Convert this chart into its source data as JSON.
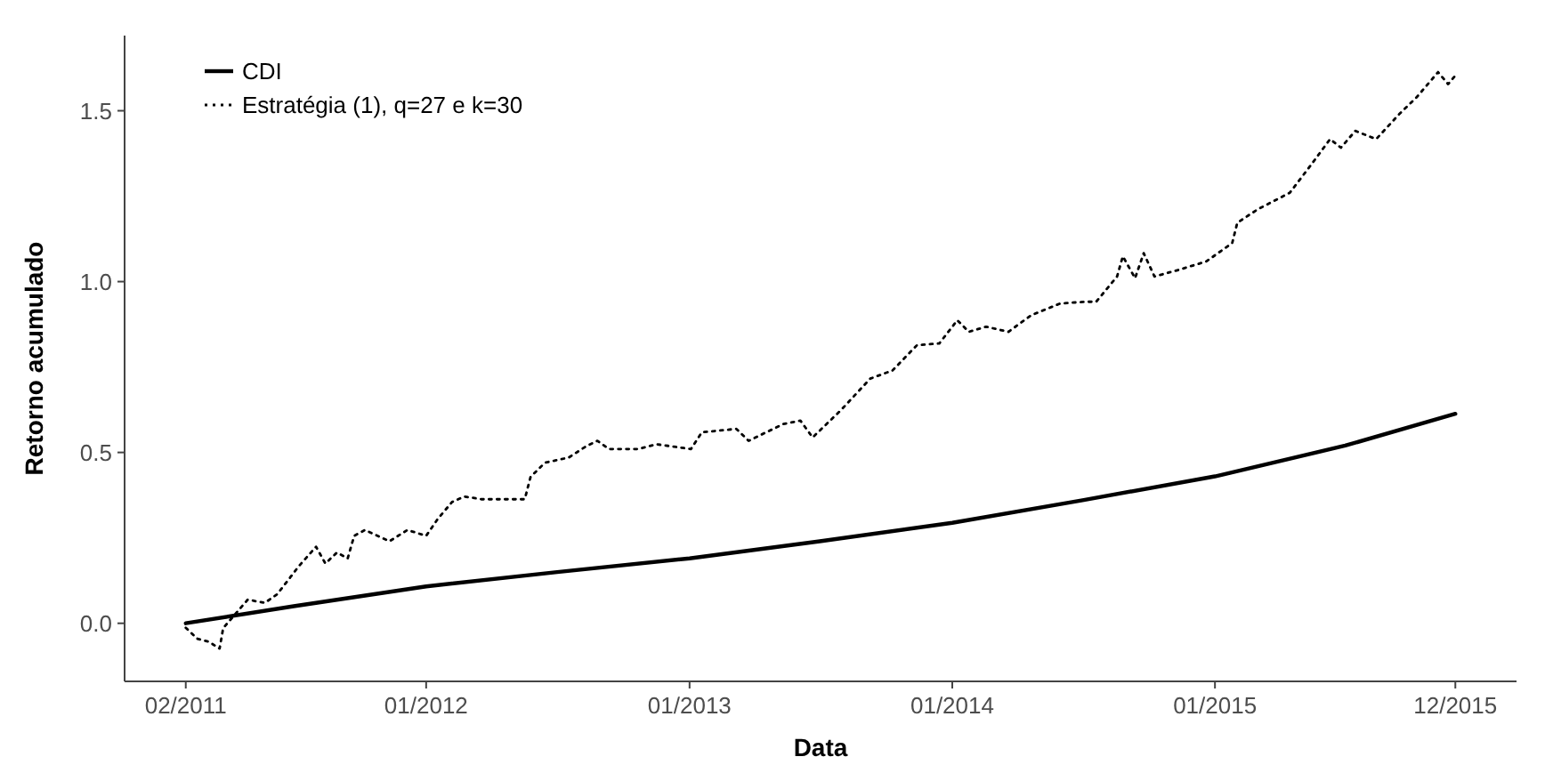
{
  "chart_data": {
    "type": "line",
    "xlabel": "Data",
    "ylabel": "Retorno acumulado",
    "legend": "top left",
    "grid": false,
    "xlim": [
      "2010-11-08",
      "2016-02-24"
    ],
    "ylim": [
      -0.17,
      1.72
    ],
    "xticks": [
      {
        "value": "2011-02-01",
        "label": "02/2011"
      },
      {
        "value": "2012-01-01",
        "label": "01/2012"
      },
      {
        "value": "2013-01-01",
        "label": "01/2013"
      },
      {
        "value": "2014-01-01",
        "label": "01/2014"
      },
      {
        "value": "2015-01-01",
        "label": "01/2015"
      },
      {
        "value": "2015-12-01",
        "label": "12/2015"
      }
    ],
    "yticks": [
      {
        "value": 0,
        "label": "0.0"
      },
      {
        "value": 0.5,
        "label": "0.5"
      },
      {
        "value": 1,
        "label": "1.0"
      },
      {
        "value": 1.5,
        "label": "1.5"
      }
    ],
    "series": [
      {
        "name": "CDI",
        "color": "#000000",
        "line_style": "solid",
        "x": [
          "2011-02-01",
          "2011-07-01",
          "2012-01-01",
          "2012-07-01",
          "2013-01-01",
          "2013-07-01",
          "2014-01-01",
          "2014-07-01",
          "2015-01-01",
          "2015-07-01",
          "2015-12-01"
        ],
        "values": [
          0,
          0.05,
          0.108,
          0.15,
          0.19,
          0.24,
          0.294,
          0.36,
          0.43,
          0.52,
          0.613
        ]
      },
      {
        "name": "Estratégia (1), q=27 e k=30",
        "color": "#000000",
        "line_style": "dotted",
        "x": [
          "2011-02-01",
          "2011-02-17",
          "2011-03-05",
          "2011-03-20",
          "2011-03-25",
          "2011-04-28",
          "2011-05-22",
          "2011-06-08",
          "2011-06-26",
          "2011-07-08",
          "2011-08-01",
          "2011-08-14",
          "2011-08-30",
          "2011-09-14",
          "2011-09-23",
          "2011-10-08",
          "2011-11-11",
          "2011-12-06",
          "2012-01-01",
          "2012-01-17",
          "2012-02-06",
          "2012-02-23",
          "2012-03-18",
          "2012-04-19",
          "2012-05-17",
          "2012-05-25",
          "2012-06-14",
          "2012-07-17",
          "2012-08-11",
          "2012-08-26",
          "2012-09-11",
          "2012-10-22",
          "2012-11-16",
          "2013-01-03",
          "2013-01-18",
          "2013-03-07",
          "2013-03-24",
          "2013-05-11",
          "2013-06-04",
          "2013-06-21",
          "2013-07-30",
          "2013-09-09",
          "2013-10-10",
          "2013-11-13",
          "2013-12-14",
          "2014-01-08",
          "2014-01-24",
          "2014-02-17",
          "2014-03-20",
          "2014-04-21",
          "2014-05-31",
          "2014-07-05",
          "2014-07-20",
          "2014-08-18",
          "2014-08-26",
          "2014-09-12",
          "2014-09-24",
          "2014-10-09",
          "2014-11-11",
          "2014-12-20",
          "2015-01-25",
          "2015-02-01",
          "2015-03-01",
          "2015-04-15",
          "2015-05-15",
          "2015-06-10",
          "2015-06-25",
          "2015-07-15",
          "2015-08-13",
          "2015-09-14",
          "2015-10-08",
          "2015-11-07",
          "2015-11-21",
          "2015-12-01"
        ],
        "values": [
          -0.013,
          -0.045,
          -0.054,
          -0.074,
          -0.014,
          0.069,
          0.06,
          0.085,
          0.134,
          0.167,
          0.224,
          0.175,
          0.207,
          0.19,
          0.256,
          0.273,
          0.24,
          0.273,
          0.256,
          0.305,
          0.355,
          0.371,
          0.363,
          0.363,
          0.363,
          0.428,
          0.47,
          0.485,
          0.519,
          0.534,
          0.51,
          0.51,
          0.524,
          0.51,
          0.559,
          0.569,
          0.534,
          0.583,
          0.593,
          0.544,
          0.623,
          0.716,
          0.74,
          0.814,
          0.819,
          0.887,
          0.853,
          0.868,
          0.853,
          0.902,
          0.936,
          0.941,
          0.941,
          1.015,
          1.074,
          1.01,
          1.083,
          1.015,
          1.034,
          1.059,
          1.113,
          1.172,
          1.211,
          1.26,
          1.343,
          1.417,
          1.392,
          1.441,
          1.417,
          1.49,
          1.539,
          1.613,
          1.578,
          1.603
        ]
      }
    ]
  }
}
